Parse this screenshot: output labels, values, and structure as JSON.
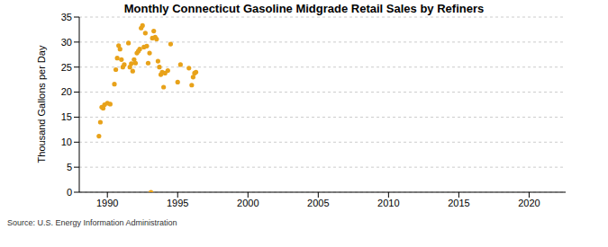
{
  "chart_data": {
    "type": "scatter",
    "title": "Monthly Connecticut Gasoline Midgrade Retail Sales by Refiners",
    "y_label": "Thousand Gallons per Day",
    "source": "Source: U.S. Energy Information Administration",
    "color": "#e8a21a",
    "marker": "circle",
    "grid": true,
    "x": [
      1989.4,
      1989.5,
      1989.6,
      1989.7,
      1989.8,
      1990.0,
      1990.2,
      1990.5,
      1990.6,
      1990.7,
      1990.8,
      1990.9,
      1991.0,
      1991.1,
      1991.2,
      1991.5,
      1991.6,
      1991.7,
      1991.8,
      1991.9,
      1992.0,
      1992.1,
      1992.2,
      1992.3,
      1992.4,
      1992.5,
      1992.6,
      1992.7,
      1992.8,
      1992.9,
      1993.0,
      1993.1,
      1993.2,
      1993.3,
      1993.4,
      1993.5,
      1993.6,
      1993.7,
      1993.8,
      1993.9,
      1994.0,
      1994.1,
      1994.3,
      1994.5,
      1995.0,
      1995.2,
      1995.8,
      1996.0,
      1996.1,
      1996.2,
      1996.3
    ],
    "values": [
      11.2,
      14.0,
      17.0,
      16.8,
      17.5,
      17.8,
      17.6,
      21.6,
      24.5,
      26.8,
      29.3,
      28.6,
      26.5,
      25.0,
      25.5,
      29.8,
      25.0,
      25.7,
      24.2,
      26.5,
      25.8,
      27.8,
      28.2,
      28.6,
      32.8,
      33.3,
      29.0,
      31.8,
      29.2,
      25.8,
      27.8,
      0,
      30.8,
      32.2,
      31.0,
      30.6,
      26.2,
      25.0,
      23.5,
      24.0,
      21.0,
      23.8,
      24.3,
      29.6,
      22.0,
      25.5,
      24.8,
      21.4,
      23.0,
      23.8,
      24.0
    ],
    "xlim": [
      1988,
      2022.6
    ],
    "xticks": [
      1990,
      1995,
      2000,
      2005,
      2010,
      2015,
      2020
    ],
    "ylim": [
      0,
      35
    ],
    "yticks": [
      0,
      5,
      10,
      15,
      20,
      25,
      30,
      35
    ]
  }
}
